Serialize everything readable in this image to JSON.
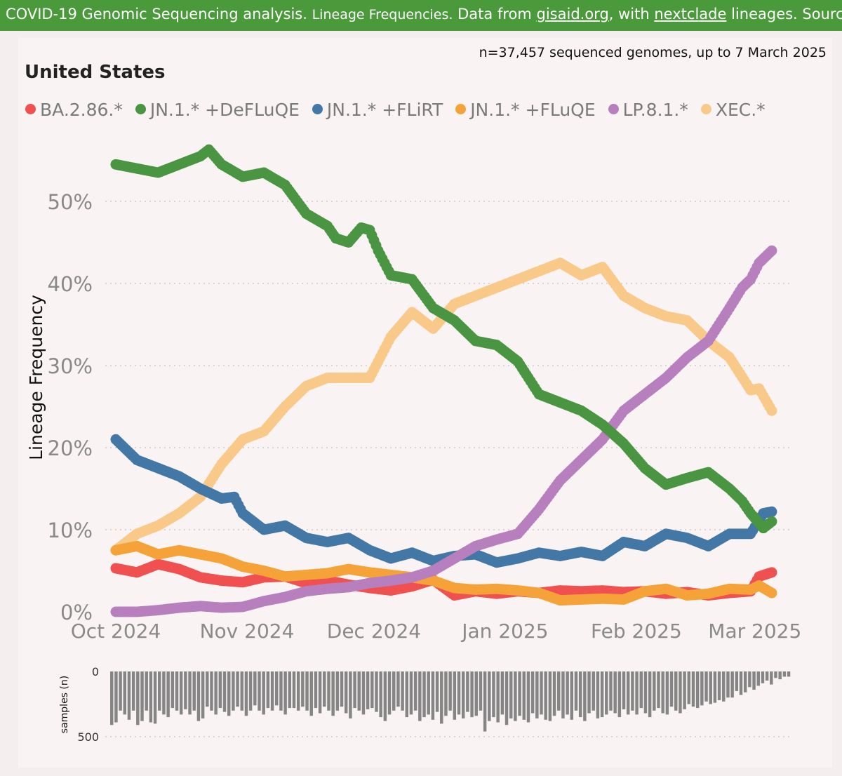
{
  "header": {
    "title_main": "COVID-19 Genomic Sequencing analysis.",
    "title_sub": "Lineage Frequencies.",
    "source_pre": "Data from",
    "source_link1": "gisaid.org",
    "source_mid": ", with",
    "source_link2": "nextclade",
    "source_post": "lineages. Source"
  },
  "subtitle": "n=37,457 sequenced genomes, up to 7 March 2025",
  "country": "United States",
  "legend": [
    {
      "label": "BA.2.86.*",
      "color": "#f05050"
    },
    {
      "label": "JN.1.* +DeFLuQE",
      "color": "#4a9542"
    },
    {
      "label": "JN.1.* +FLiRT",
      "color": "#4378a6"
    },
    {
      "label": "JN.1.* +FLuQE",
      "color": "#f5a338"
    },
    {
      "label": "LP.8.1.*",
      "color": "#b77fbd"
    },
    {
      "label": "XEC.*",
      "color": "#f9c98a"
    }
  ],
  "chart_data": [
    {
      "type": "scatter",
      "title": "United States",
      "ylabel": "Lineage Frequency",
      "xlabel": "",
      "ylim": [
        0,
        57
      ],
      "yticks": [
        0,
        10,
        20,
        30,
        40,
        50
      ],
      "ytick_labels": [
        "0%",
        "10%",
        "20%",
        "30%",
        "40%",
        "50%"
      ],
      "xlim_days": [
        0,
        157
      ],
      "xtick_days": [
        0,
        31,
        61,
        92,
        123,
        151
      ],
      "xtick_labels": [
        "Oct 2024",
        "Nov 2024",
        "Dec 2024",
        "Jan 2025",
        "Feb 2025",
        "Mar 2025"
      ],
      "series": [
        {
          "name": "BA.2.86.*",
          "color": "#f05050",
          "days": [
            0,
            5,
            10,
            15,
            20,
            25,
            30,
            35,
            40,
            45,
            50,
            55,
            60,
            65,
            70,
            75,
            80,
            85,
            90,
            95,
            100,
            105,
            110,
            115,
            120,
            125,
            130,
            135,
            140,
            145,
            150,
            152,
            155
          ],
          "values": [
            5.3,
            4.8,
            5.8,
            5.2,
            4.2,
            3.8,
            3.6,
            4.2,
            4.3,
            3.5,
            3.8,
            3.3,
            2.9,
            2.6,
            3.1,
            3.9,
            2.0,
            2.5,
            2.2,
            2.5,
            2.3,
            2.6,
            2.5,
            2.6,
            2.4,
            2.5,
            2.2,
            2.4,
            2.0,
            2.3,
            2.5,
            4.3,
            4.8
          ]
        },
        {
          "name": "JN.1.* +DeFLuQE",
          "color": "#4a9542",
          "days": [
            0,
            5,
            10,
            15,
            20,
            22,
            25,
            30,
            35,
            40,
            45,
            50,
            52,
            55,
            58,
            60,
            62,
            65,
            70,
            75,
            80,
            85,
            90,
            95,
            100,
            105,
            110,
            115,
            120,
            125,
            130,
            135,
            140,
            145,
            148,
            150,
            153,
            155
          ],
          "values": [
            54.5,
            54.0,
            53.5,
            54.5,
            55.5,
            56.3,
            54.5,
            53.0,
            53.5,
            52.0,
            48.5,
            47.0,
            45.5,
            45.0,
            46.8,
            46.5,
            44.0,
            41.0,
            40.5,
            37.0,
            35.5,
            33.0,
            32.5,
            30.5,
            26.5,
            25.5,
            24.5,
            22.8,
            20.5,
            17.5,
            15.5,
            16.3,
            17.0,
            15.0,
            13.5,
            12.0,
            10.2,
            11.0
          ]
        },
        {
          "name": "JN.1.* +FLiRT",
          "color": "#4378a6",
          "days": [
            0,
            5,
            10,
            15,
            20,
            25,
            28,
            30,
            35,
            40,
            45,
            50,
            55,
            60,
            65,
            70,
            75,
            80,
            85,
            90,
            95,
            100,
            105,
            110,
            115,
            120,
            125,
            130,
            135,
            140,
            145,
            150,
            153,
            155
          ],
          "values": [
            21.0,
            18.5,
            17.5,
            16.5,
            15.0,
            13.8,
            14.0,
            12.0,
            10.0,
            10.5,
            9.0,
            8.5,
            9.0,
            7.5,
            6.5,
            7.2,
            6.2,
            6.8,
            7.0,
            6.0,
            6.5,
            7.2,
            6.8,
            7.3,
            6.8,
            8.5,
            8.0,
            9.5,
            9.0,
            8.0,
            9.5,
            9.5,
            12.0,
            12.2
          ]
        },
        {
          "name": "JN.1.* +FLuQE",
          "color": "#f5a338",
          "days": [
            0,
            5,
            10,
            15,
            20,
            25,
            30,
            35,
            40,
            45,
            50,
            55,
            60,
            65,
            70,
            75,
            80,
            85,
            90,
            95,
            100,
            105,
            110,
            115,
            120,
            125,
            130,
            135,
            140,
            145,
            150,
            152,
            155
          ],
          "values": [
            7.5,
            8.0,
            7.0,
            7.5,
            7.0,
            6.5,
            5.5,
            5.0,
            4.3,
            4.5,
            4.7,
            5.2,
            4.8,
            4.5,
            4.2,
            3.8,
            2.9,
            2.7,
            2.8,
            2.6,
            2.3,
            1.4,
            1.5,
            1.6,
            1.5,
            2.5,
            2.8,
            2.0,
            2.2,
            2.8,
            2.7,
            3.2,
            2.3
          ]
        },
        {
          "name": "LP.8.1.*",
          "color": "#b77fbd",
          "days": [
            0,
            5,
            10,
            15,
            20,
            25,
            30,
            35,
            40,
            45,
            50,
            55,
            60,
            65,
            70,
            75,
            80,
            85,
            90,
            95,
            100,
            105,
            110,
            115,
            120,
            125,
            130,
            135,
            140,
            145,
            148,
            150,
            152,
            155
          ],
          "values": [
            0.0,
            0.0,
            0.2,
            0.5,
            0.7,
            0.5,
            0.6,
            1.3,
            1.8,
            2.5,
            2.8,
            3.0,
            3.5,
            3.8,
            4.2,
            5.0,
            6.5,
            8.0,
            8.8,
            9.5,
            12.5,
            16.0,
            18.5,
            21.0,
            24.5,
            26.5,
            28.5,
            31.0,
            33.0,
            37.0,
            39.5,
            40.5,
            42.5,
            44.0
          ]
        },
        {
          "name": "XEC.*",
          "color": "#f9c98a",
          "days": [
            0,
            5,
            10,
            15,
            20,
            25,
            30,
            35,
            40,
            45,
            50,
            55,
            60,
            65,
            70,
            75,
            80,
            85,
            90,
            95,
            100,
            105,
            110,
            115,
            120,
            125,
            130,
            135,
            140,
            145,
            150,
            152,
            155
          ],
          "values": [
            7.5,
            9.5,
            10.5,
            12.0,
            14.0,
            18.0,
            21.0,
            22.0,
            25.0,
            27.5,
            28.5,
            28.5,
            28.5,
            33.5,
            36.5,
            34.5,
            37.5,
            38.5,
            39.5,
            40.5,
            41.5,
            42.5,
            41.0,
            42.0,
            38.5,
            37.0,
            36.0,
            35.5,
            33.0,
            31.0,
            27.0,
            27.2,
            24.5
          ]
        }
      ]
    },
    {
      "type": "bar",
      "title": "",
      "ylabel": "samples (n)",
      "ylim": [
        0,
        500
      ],
      "yticks": [
        0,
        500
      ],
      "ytick_labels": [
        "0",
        "500"
      ],
      "orientation": "inverted",
      "values": [
        410,
        390,
        300,
        330,
        370,
        300,
        410,
        380,
        300,
        390,
        400,
        300,
        330,
        350,
        280,
        300,
        330,
        290,
        330,
        300,
        380,
        360,
        270,
        300,
        330,
        280,
        310,
        340,
        300,
        270,
        300,
        340,
        300,
        260,
        300,
        330,
        280,
        300,
        260,
        300,
        330,
        280,
        280,
        300,
        270,
        300,
        340,
        280,
        320,
        270,
        300,
        340,
        300,
        270,
        320,
        360,
        280,
        300,
        330,
        290,
        280,
        310,
        350,
        380,
        330,
        300,
        270,
        300,
        350,
        330,
        300,
        380,
        350,
        330,
        370,
        310,
        400,
        340,
        300,
        370,
        330,
        360,
        310,
        350,
        340,
        300,
        460,
        380,
        350,
        390,
        330,
        410,
        360,
        380,
        340,
        370,
        390,
        320,
        360,
        330,
        370,
        380,
        340,
        300,
        360,
        330,
        370,
        300,
        350,
        380,
        320,
        300,
        360,
        350,
        330,
        300,
        320,
        350,
        290,
        330,
        300,
        330,
        280,
        320,
        350,
        300,
        280,
        320,
        330,
        270,
        300,
        320,
        290,
        250,
        270,
        280,
        260,
        230,
        250,
        240,
        220,
        230,
        200,
        200,
        150,
        180,
        160,
        120,
        140,
        110,
        90,
        70,
        100,
        50,
        60,
        40,
        40
      ]
    }
  ]
}
